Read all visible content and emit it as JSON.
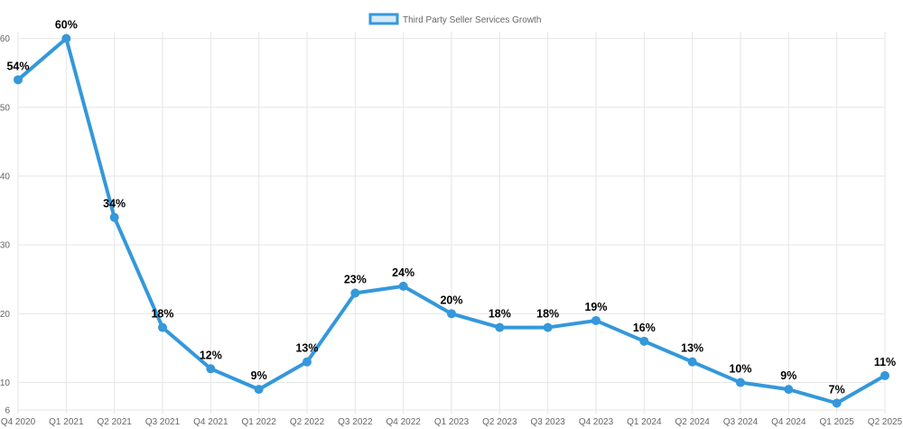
{
  "chart_data": {
    "type": "line",
    "title": "",
    "xlabel": "",
    "ylabel": "",
    "ylim": [
      6,
      61
    ],
    "y_ticks": [
      6,
      10,
      20,
      30,
      40,
      50,
      60
    ],
    "grid": true,
    "legend_position": "top-center",
    "categories": [
      "Q4 2020",
      "Q1 2021",
      "Q2 2021",
      "Q3 2021",
      "Q4 2021",
      "Q1 2022",
      "Q2 2022",
      "Q3 2022",
      "Q4 2022",
      "Q1 2023",
      "Q2 2023",
      "Q3 2023",
      "Q4 2023",
      "Q1 2024",
      "Q2 2024",
      "Q3 2024",
      "Q4 2024",
      "Q1 2025",
      "Q2 2025"
    ],
    "series": [
      {
        "name": "Third Party Seller Services Growth",
        "color": "#3498db",
        "fill_color": "#d6eaf8",
        "values": [
          54,
          60,
          34,
          18,
          12,
          9,
          13,
          23,
          24,
          20,
          18,
          18,
          19,
          16,
          13,
          10,
          9,
          7,
          11
        ],
        "data_labels": [
          "54%",
          "60%",
          "34%",
          "18%",
          "12%",
          "9%",
          "13%",
          "23%",
          "24%",
          "20%",
          "18%",
          "18%",
          "19%",
          "16%",
          "13%",
          "10%",
          "9%",
          "7%",
          "11%"
        ]
      }
    ]
  }
}
